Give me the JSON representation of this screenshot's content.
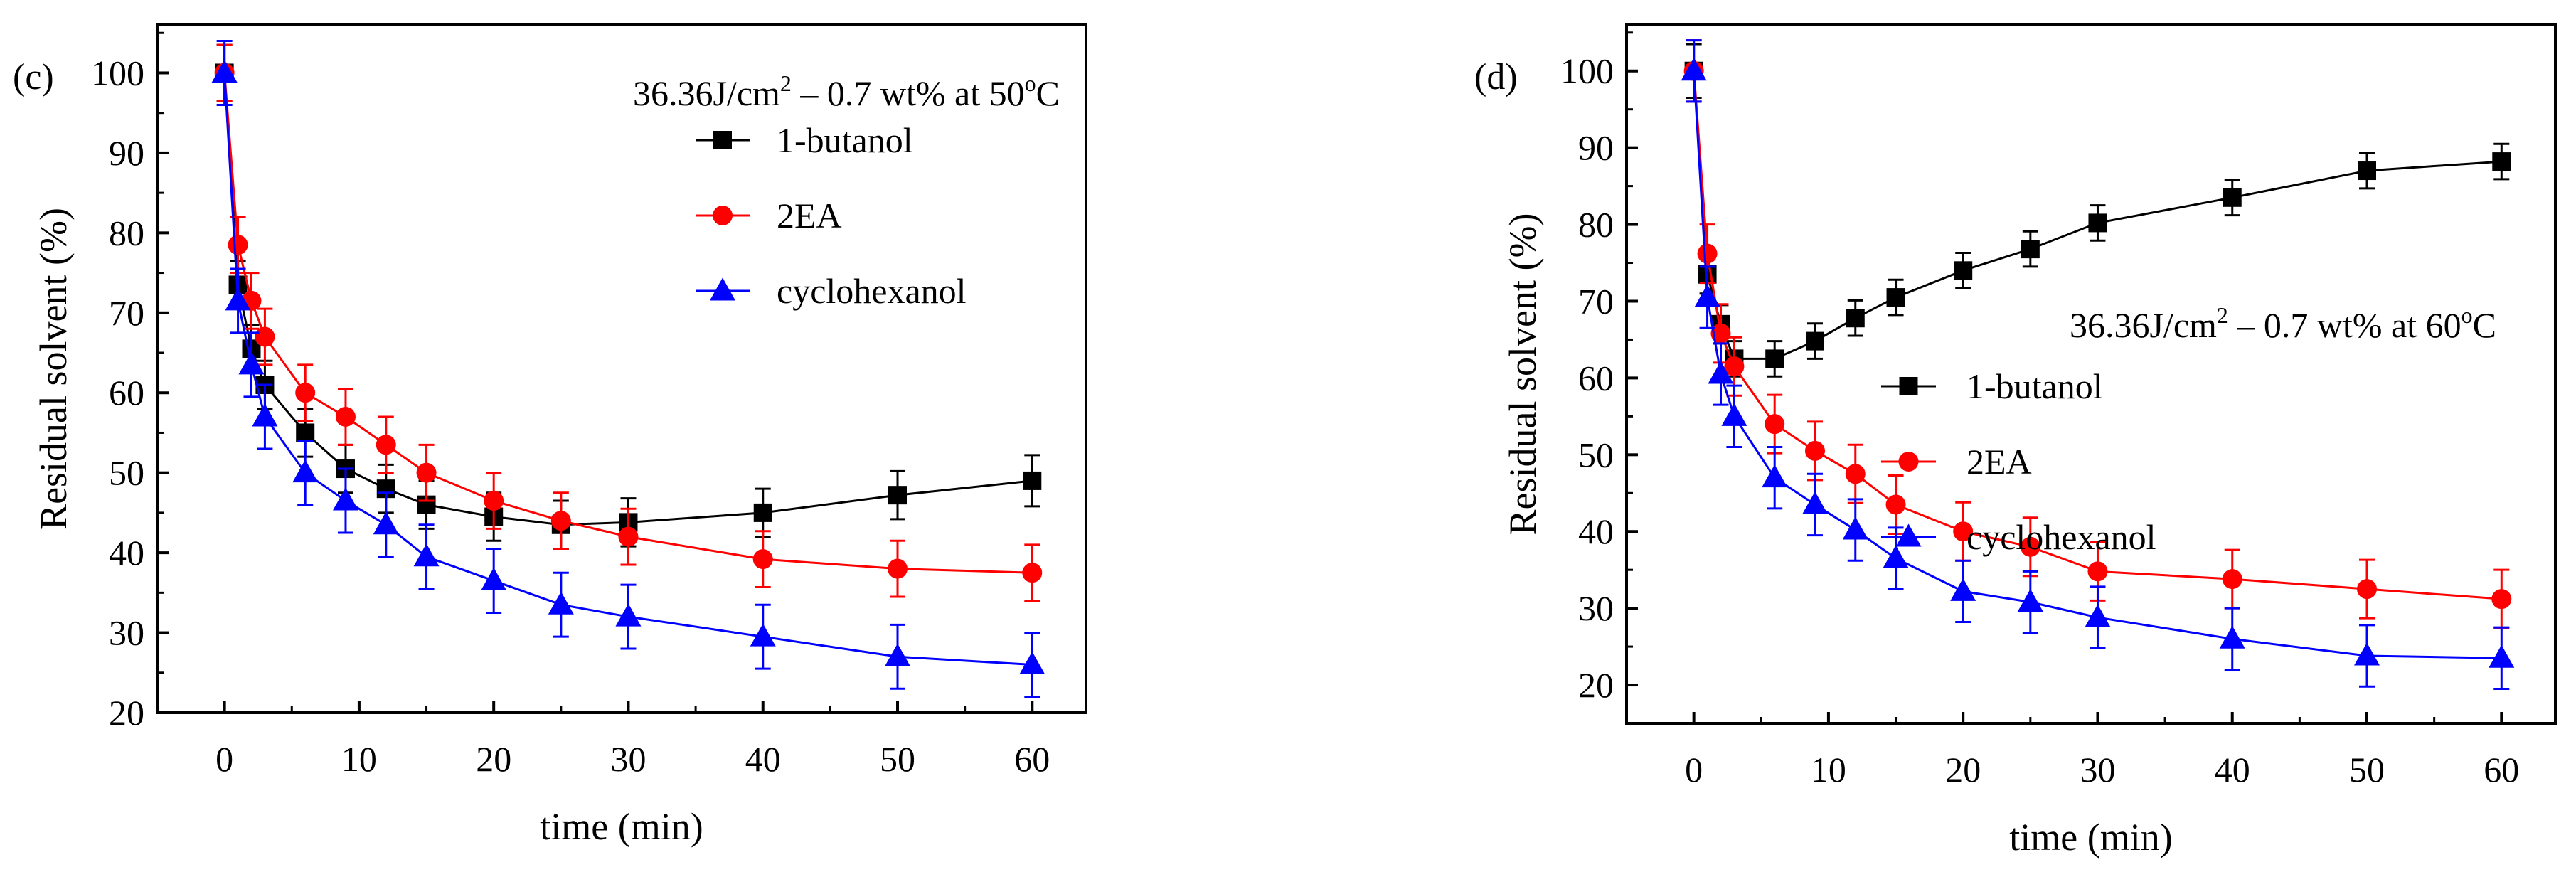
{
  "chart_data": [
    {
      "type": "line",
      "panel_label": "(c)",
      "condition_text": [
        "36.36J/cm",
        "2",
        " – 0.7 wt% at 50",
        "o",
        "C"
      ],
      "xlabel": "time (min)",
      "ylabel": "Residual solvent (%)",
      "xlim": [
        -5,
        64
      ],
      "ylim": [
        20,
        106
      ],
      "xticks": [
        0,
        10,
        20,
        30,
        40,
        50,
        60
      ],
      "yticks": [
        20,
        30,
        40,
        50,
        60,
        70,
        80,
        90,
        100
      ],
      "legend_position": "top-right",
      "x": [
        0,
        1,
        2,
        3,
        6,
        9,
        12,
        15,
        20,
        25,
        30,
        40,
        50,
        60
      ],
      "series": [
        {
          "name": "1-butanol",
          "color": "#000000",
          "marker": "square",
          "values": [
            100,
            73.5,
            65.5,
            61,
            55,
            50.5,
            48,
            46,
            44.5,
            43.5,
            43.8,
            45,
            47.2,
            49
          ],
          "errors": [
            3.5,
            3,
            3,
            3,
            3,
            3,
            3,
            3,
            3,
            3,
            3,
            3,
            3,
            3.2
          ]
        },
        {
          "name": "2EA",
          "color": "#ff0000",
          "marker": "circle",
          "values": [
            100,
            78.5,
            71.5,
            67,
            60,
            57,
            53.5,
            50,
            46.5,
            44,
            42,
            39.2,
            38,
            37.5
          ],
          "errors": [
            3.5,
            3.5,
            3.5,
            3.5,
            3.5,
            3.5,
            3.5,
            3.5,
            3.5,
            3.5,
            3.5,
            3.5,
            3.5,
            3.5
          ]
        },
        {
          "name": "cyclohexanol",
          "color": "#0000ff",
          "marker": "triangle",
          "values": [
            100,
            71.5,
            63.5,
            57,
            50,
            46.5,
            43.5,
            39.5,
            36.5,
            33.5,
            32,
            29.5,
            27,
            26
          ],
          "errors": [
            4,
            4,
            4,
            4,
            4,
            4,
            4,
            4,
            4,
            4,
            4,
            4,
            4,
            4
          ]
        }
      ]
    },
    {
      "type": "line",
      "panel_label": "(d)",
      "condition_text": [
        "36.36J/cm",
        "2",
        " – 0.7 wt% at 60",
        "o",
        "C"
      ],
      "xlabel": "time (min)",
      "ylabel": "Residual solvent (%)",
      "xlim": [
        -5,
        64
      ],
      "ylim": [
        15,
        106
      ],
      "xticks": [
        0,
        10,
        20,
        30,
        40,
        50,
        60
      ],
      "yticks": [
        20,
        30,
        40,
        50,
        60,
        70,
        80,
        90,
        100
      ],
      "legend_position": "right",
      "x": [
        0,
        1,
        2,
        3,
        6,
        9,
        12,
        15,
        20,
        25,
        30,
        40,
        50,
        60
      ],
      "series": [
        {
          "name": "1-butanol",
          "color": "#000000",
          "marker": "square",
          "values": [
            100,
            73.5,
            67,
            62.5,
            62.5,
            64.8,
            67.8,
            70.5,
            74,
            76.8,
            80.2,
            83.5,
            87,
            88.2
          ],
          "errors": [
            3.5,
            2.5,
            2.5,
            2.3,
            2.3,
            2.3,
            2.3,
            2.3,
            2.3,
            2.3,
            2.3,
            2.3,
            2.3,
            2.3
          ]
        },
        {
          "name": "2EA",
          "color": "#ff0000",
          "marker": "circle",
          "values": [
            100,
            76.2,
            65.8,
            61.5,
            54,
            50.5,
            47.5,
            43.5,
            40,
            38,
            34.8,
            33.8,
            32.5,
            31.2
          ],
          "errors": [
            4,
            3.8,
            3.8,
            3.8,
            3.8,
            3.8,
            3.8,
            3.8,
            3.8,
            3.8,
            3.8,
            3.8,
            3.8,
            3.8
          ]
        },
        {
          "name": "cyclohexanol",
          "color": "#0000ff",
          "marker": "triangle",
          "values": [
            100,
            70.5,
            60.5,
            55,
            47,
            43.5,
            40.2,
            36.5,
            32.2,
            30.8,
            28.8,
            26,
            23.8,
            23.5
          ],
          "errors": [
            4,
            4,
            4,
            4,
            4,
            4,
            4,
            4,
            4,
            4,
            4,
            4,
            4,
            4
          ]
        }
      ]
    }
  ]
}
